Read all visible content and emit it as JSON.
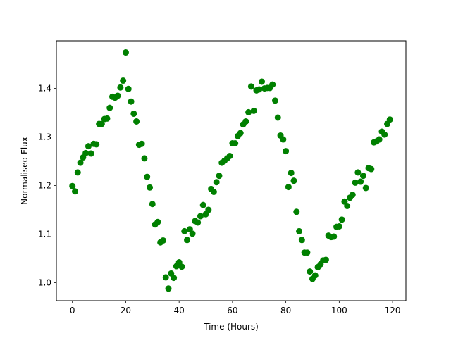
{
  "chart_data": {
    "type": "scatter",
    "xlabel": "Time (Hours)",
    "ylabel": "Normalised Flux",
    "xlim": [
      -6,
      125
    ],
    "ylim": [
      0.963,
      1.498
    ],
    "xticks": [
      0,
      20,
      40,
      60,
      80,
      100,
      120
    ],
    "yticks": [
      1.0,
      1.1,
      1.2,
      1.3,
      1.4
    ],
    "grid": false,
    "marker_color": "#008000",
    "series": [
      {
        "x": [
          0,
          1,
          2,
          3,
          4,
          5,
          6,
          7,
          8,
          9,
          10,
          11,
          12,
          13,
          14,
          15,
          16,
          17,
          18,
          19,
          20,
          21,
          22,
          23,
          24,
          25,
          26,
          27,
          28,
          29,
          30,
          31,
          32,
          33,
          34,
          35,
          36,
          37,
          38,
          39,
          40,
          41,
          42,
          43,
          44,
          45,
          46,
          47,
          48,
          49,
          50,
          51,
          52,
          53,
          54,
          55,
          56,
          57,
          58,
          59,
          60,
          61,
          62,
          63,
          64,
          65,
          66,
          67,
          68,
          69,
          70,
          71,
          72,
          73,
          74,
          75,
          76,
          77,
          78,
          79,
          80,
          81,
          82,
          83,
          84,
          85,
          86,
          87,
          88,
          89,
          90,
          91,
          92,
          93,
          94,
          95,
          96,
          97,
          98,
          99,
          100,
          101,
          102,
          103,
          104,
          105,
          106,
          107,
          108,
          109,
          110,
          111,
          112,
          113,
          114,
          115,
          116,
          117,
          118,
          119
        ],
        "y": [
          1.199,
          1.188,
          1.227,
          1.247,
          1.258,
          1.267,
          1.281,
          1.266,
          1.286,
          1.285,
          1.327,
          1.327,
          1.337,
          1.338,
          1.36,
          1.383,
          1.381,
          1.385,
          1.402,
          1.416,
          1.474,
          1.399,
          1.373,
          1.348,
          1.332,
          1.284,
          1.286,
          1.256,
          1.218,
          1.196,
          1.162,
          1.12,
          1.125,
          1.083,
          1.087,
          1.011,
          0.988,
          1.019,
          1.01,
          1.034,
          1.042,
          1.033,
          1.106,
          1.088,
          1.11,
          1.101,
          1.127,
          1.124,
          1.137,
          1.16,
          1.141,
          1.15,
          1.193,
          1.187,
          1.207,
          1.22,
          1.247,
          1.251,
          1.256,
          1.261,
          1.287,
          1.287,
          1.302,
          1.308,
          1.326,
          1.332,
          1.351,
          1.404,
          1.354,
          1.396,
          1.398,
          1.414,
          1.4,
          1.401,
          1.401,
          1.408,
          1.375,
          1.34,
          1.303,
          1.295,
          1.271,
          1.197,
          1.226,
          1.21,
          1.146,
          1.106,
          1.088,
          1.062,
          1.062,
          1.023,
          1.008,
          1.015,
          1.032,
          1.038,
          1.046,
          1.047,
          1.097,
          1.094,
          1.095,
          1.115,
          1.116,
          1.13,
          1.167,
          1.158,
          1.175,
          1.181,
          1.206,
          1.227,
          1.208,
          1.22,
          1.195,
          1.236,
          1.234,
          1.289,
          1.291,
          1.295,
          1.311,
          1.305,
          1.327,
          1.336
        ]
      }
    ]
  }
}
